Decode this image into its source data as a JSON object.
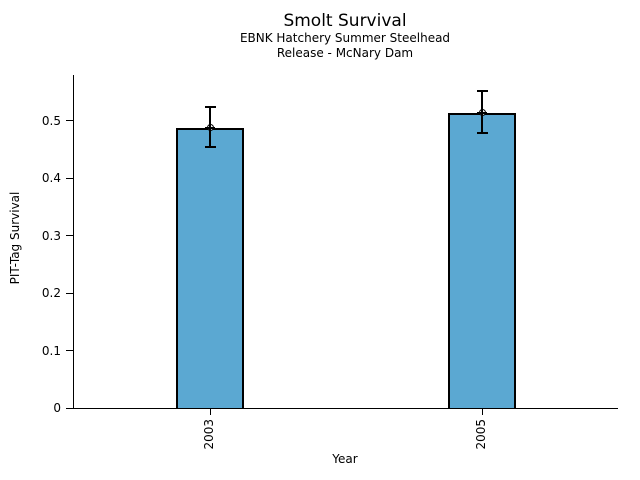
{
  "title": "Smolt Survival",
  "subtitle1": "EBNK Hatchery Summer Steelhead",
  "subtitle2": "Release - McNary Dam",
  "chart_data": {
    "type": "bar",
    "title": "Smolt Survival",
    "subtitle": [
      "EBNK Hatchery Summer Steelhead",
      "Release - McNary Dam"
    ],
    "xlabel": "Year",
    "ylabel": "PIT-Tag Survival",
    "categories": [
      "2003",
      "2005"
    ],
    "values": [
      0.488,
      0.514
    ],
    "error_low": [
      0.455,
      0.479
    ],
    "error_high": [
      0.524,
      0.552
    ],
    "ylim": [
      0,
      0.58
    ],
    "yticks": [
      0,
      0.1,
      0.2,
      0.3,
      0.4,
      0.5
    ],
    "ytick_labels": [
      "0",
      "0.1",
      "0.2",
      "0.3",
      "0.4",
      "0.5"
    ],
    "bar_color": "#5BA8D2",
    "bar_edge_color": "#000000",
    "axis_color": "#000000",
    "grid": false,
    "legend": null,
    "marker": "open-circle",
    "xtick_rotation": -90
  }
}
